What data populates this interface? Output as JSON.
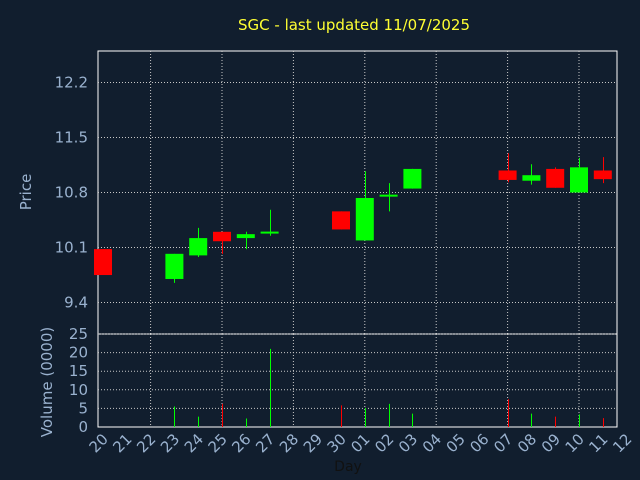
{
  "chart_data": {
    "type": "candlestick",
    "title": "SGC - last updated 11/07/2025",
    "xlabel": "Day",
    "price_panel": {
      "ylabel": "Price",
      "ylim": [
        9.0,
        12.6
      ],
      "yticks": [
        "12.2",
        "11.5",
        "10.8",
        "10.1",
        "9.4"
      ],
      "grid": true
    },
    "volume_panel": {
      "ylabel": "Volume (0000)",
      "ylim": [
        0,
        25
      ],
      "yticks": [
        "25",
        "20",
        "15",
        "10",
        "5",
        "0"
      ],
      "grid": true
    },
    "x_ticks": [
      "20",
      "21",
      "22",
      "23",
      "24",
      "25",
      "26",
      "27",
      "28",
      "29",
      "30",
      "01",
      "02",
      "03",
      "04",
      "05",
      "06",
      "07",
      "08",
      "09",
      "10",
      "11",
      "12"
    ],
    "candles": [
      {
        "day": "20",
        "open": 10.08,
        "close": 9.75,
        "high": 10.08,
        "low": 9.75,
        "volume": 0
      },
      {
        "day": "23",
        "open": 9.7,
        "close": 10.02,
        "high": 10.02,
        "low": 9.65,
        "volume": 5.5
      },
      {
        "day": "24",
        "open": 10.0,
        "close": 10.22,
        "high": 10.35,
        "low": 9.98,
        "volume": 2.8
      },
      {
        "day": "25",
        "open": 10.3,
        "close": 10.18,
        "high": 10.3,
        "low": 10.02,
        "volume": 6.2
      },
      {
        "day": "26",
        "open": 10.22,
        "close": 10.27,
        "high": 10.3,
        "low": 10.08,
        "volume": 2.3
      },
      {
        "day": "27",
        "open": 10.27,
        "close": 10.29,
        "high": 10.58,
        "low": 10.25,
        "volume": 21
      },
      {
        "day": "30",
        "open": 10.56,
        "close": 10.33,
        "high": 10.56,
        "low": 10.33,
        "volume": 5.8
      },
      {
        "day": "01",
        "open": 10.19,
        "close": 10.73,
        "high": 11.07,
        "low": 10.19,
        "volume": 5.1
      },
      {
        "day": "02",
        "open": 10.75,
        "close": 10.76,
        "high": 10.92,
        "low": 10.56,
        "volume": 6.2
      },
      {
        "day": "03",
        "open": 10.85,
        "close": 11.1,
        "high": 11.1,
        "low": 10.85,
        "volume": 3.6
      },
      {
        "day": "07",
        "open": 11.08,
        "close": 10.96,
        "high": 11.3,
        "low": 10.93,
        "volume": 7.5
      },
      {
        "day": "08",
        "open": 10.95,
        "close": 11.02,
        "high": 11.16,
        "low": 10.9,
        "volume": 3.6
      },
      {
        "day": "09",
        "open": 11.1,
        "close": 10.86,
        "high": 11.12,
        "low": 10.86,
        "volume": 2.8
      },
      {
        "day": "10",
        "open": 10.8,
        "close": 11.12,
        "high": 11.24,
        "low": 10.8,
        "volume": 3.4
      },
      {
        "day": "11",
        "open": 11.08,
        "close": 10.97,
        "high": 11.25,
        "low": 10.92,
        "volume": 2.4
      }
    ],
    "colors": {
      "background": "#111e2e",
      "up": "#00ff00",
      "down": "#ff0000",
      "grid": "#c8c8c8",
      "title": "#ffff33",
      "axis_text": "#9ab2cf",
      "frame": "#ffffff"
    }
  }
}
